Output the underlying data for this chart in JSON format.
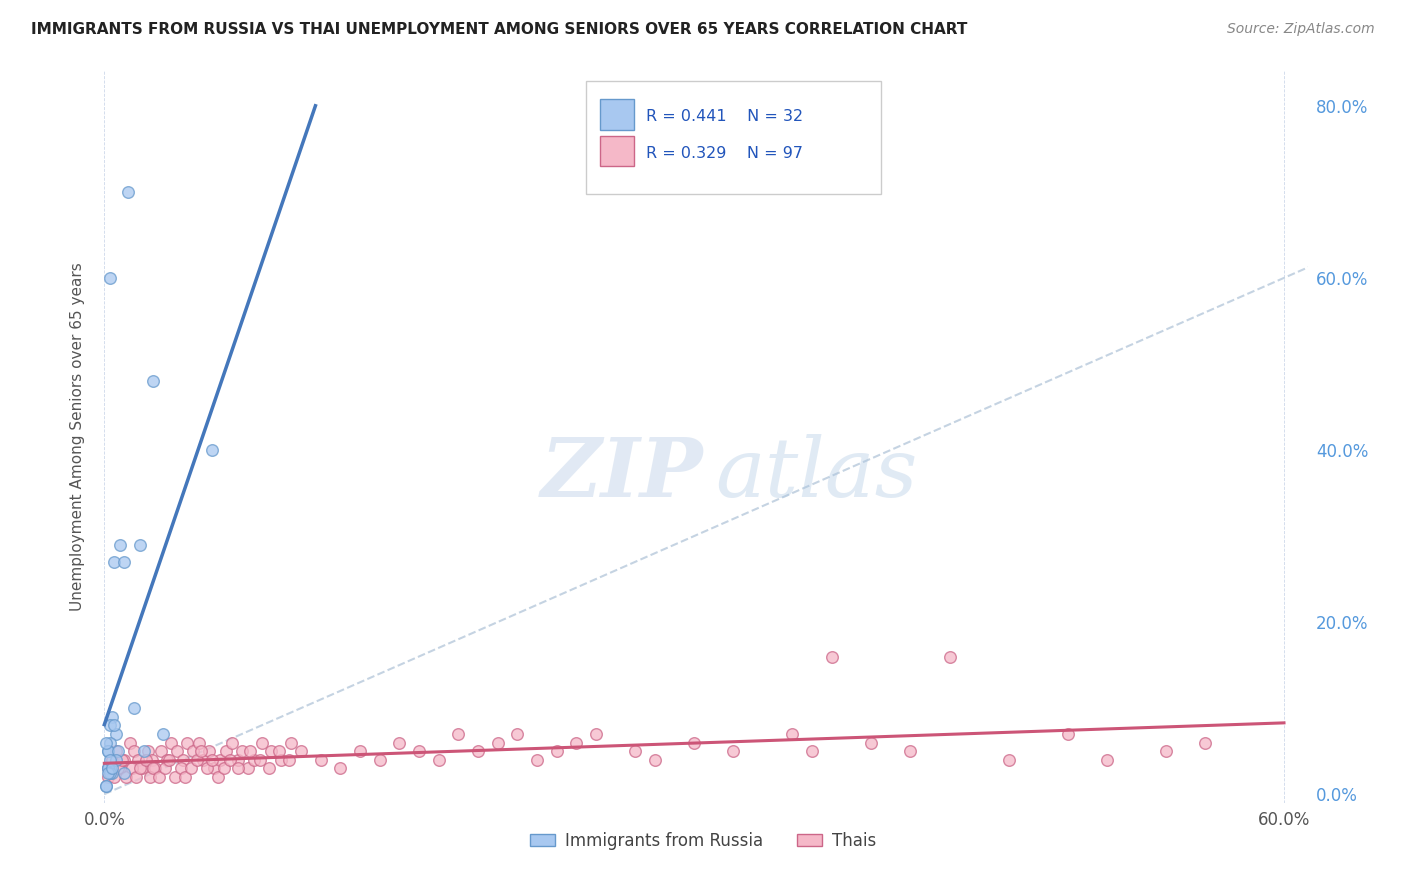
{
  "title": "IMMIGRANTS FROM RUSSIA VS THAI UNEMPLOYMENT AMONG SENIORS OVER 65 YEARS CORRELATION CHART",
  "source": "Source: ZipAtlas.com",
  "ylabel": "Unemployment Among Seniors over 65 years",
  "legend_blue_label": "Immigrants from Russia",
  "legend_pink_label": "Thais",
  "blue_color": "#a8c8f0",
  "pink_color": "#f5b8c8",
  "blue_edge_color": "#6699cc",
  "pink_edge_color": "#cc6688",
  "blue_line_color": "#4477bb",
  "pink_line_color": "#cc5577",
  "dashed_line_color": "#bbccdd",
  "xmin": 0.0,
  "xmax": 0.6,
  "ymin": 0.0,
  "ymax": 0.8,
  "ytick_vals": [
    0.0,
    0.2,
    0.4,
    0.6,
    0.8
  ],
  "ytick_labels": [
    "0.0%",
    "20.0%",
    "40.0%",
    "60.0%",
    "80.0%"
  ],
  "blue_R": 0.441,
  "blue_N": 32,
  "pink_R": 0.329,
  "pink_N": 97,
  "blue_points_x": [
    0.003,
    0.012,
    0.025,
    0.018,
    0.005,
    0.008,
    0.01,
    0.015,
    0.004,
    0.006,
    0.003,
    0.002,
    0.002,
    0.001,
    0.003,
    0.005,
    0.007,
    0.004,
    0.003,
    0.002,
    0.055,
    0.006,
    0.01,
    0.002,
    0.003,
    0.003,
    0.03,
    0.002,
    0.001,
    0.001,
    0.004,
    0.02
  ],
  "blue_points_y": [
    0.6,
    0.7,
    0.48,
    0.29,
    0.27,
    0.29,
    0.27,
    0.1,
    0.09,
    0.07,
    0.06,
    0.05,
    0.05,
    0.06,
    0.08,
    0.08,
    0.05,
    0.025,
    0.03,
    0.03,
    0.4,
    0.04,
    0.025,
    0.03,
    0.04,
    0.025,
    0.07,
    0.025,
    0.01,
    0.01,
    0.03,
    0.05
  ],
  "pink_points_x": [
    0.002,
    0.004,
    0.006,
    0.008,
    0.01,
    0.013,
    0.015,
    0.017,
    0.019,
    0.022,
    0.024,
    0.026,
    0.029,
    0.032,
    0.034,
    0.037,
    0.04,
    0.042,
    0.045,
    0.048,
    0.05,
    0.053,
    0.056,
    0.059,
    0.062,
    0.065,
    0.068,
    0.07,
    0.073,
    0.076,
    0.08,
    0.085,
    0.09,
    0.095,
    0.1,
    0.11,
    0.12,
    0.13,
    0.14,
    0.15,
    0.16,
    0.17,
    0.18,
    0.19,
    0.2,
    0.21,
    0.22,
    0.23,
    0.24,
    0.25,
    0.27,
    0.28,
    0.3,
    0.32,
    0.35,
    0.36,
    0.37,
    0.39,
    0.41,
    0.43,
    0.46,
    0.49,
    0.51,
    0.54,
    0.56,
    0.002,
    0.003,
    0.005,
    0.007,
    0.009,
    0.011,
    0.014,
    0.016,
    0.018,
    0.021,
    0.023,
    0.025,
    0.028,
    0.031,
    0.033,
    0.036,
    0.039,
    0.041,
    0.044,
    0.047,
    0.049,
    0.052,
    0.055,
    0.058,
    0.061,
    0.064,
    0.068,
    0.074,
    0.079,
    0.084,
    0.089,
    0.094
  ],
  "pink_points_y": [
    0.03,
    0.04,
    0.05,
    0.03,
    0.04,
    0.06,
    0.05,
    0.04,
    0.03,
    0.05,
    0.04,
    0.03,
    0.05,
    0.04,
    0.06,
    0.05,
    0.04,
    0.06,
    0.05,
    0.06,
    0.04,
    0.05,
    0.03,
    0.04,
    0.05,
    0.06,
    0.04,
    0.05,
    0.03,
    0.04,
    0.06,
    0.05,
    0.04,
    0.06,
    0.05,
    0.04,
    0.03,
    0.05,
    0.04,
    0.06,
    0.05,
    0.04,
    0.07,
    0.05,
    0.06,
    0.07,
    0.04,
    0.05,
    0.06,
    0.07,
    0.05,
    0.04,
    0.06,
    0.05,
    0.07,
    0.05,
    0.16,
    0.06,
    0.05,
    0.16,
    0.04,
    0.07,
    0.04,
    0.05,
    0.06,
    0.02,
    0.03,
    0.02,
    0.03,
    0.04,
    0.02,
    0.03,
    0.02,
    0.03,
    0.04,
    0.02,
    0.03,
    0.02,
    0.03,
    0.04,
    0.02,
    0.03,
    0.02,
    0.03,
    0.04,
    0.05,
    0.03,
    0.04,
    0.02,
    0.03,
    0.04,
    0.03,
    0.05,
    0.04,
    0.03,
    0.05,
    0.04
  ],
  "marker_size": 70,
  "marker_alpha": 0.75
}
